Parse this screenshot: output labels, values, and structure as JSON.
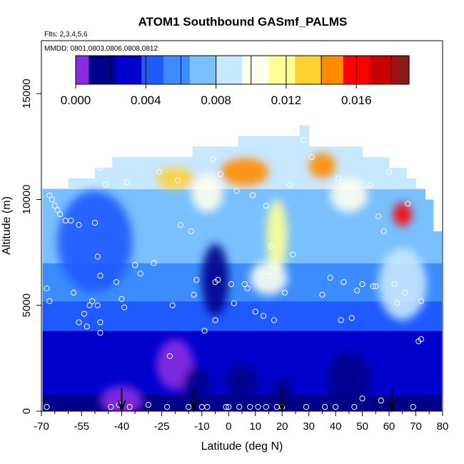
{
  "chart_data": {
    "type": "heatmap",
    "title": "ATOM1 Southbound GASmf_PALMS",
    "flights_note": "Flts: 2,3,4,5,6",
    "dates_note": "MMDD: 0801,0803,0806,0808,0812",
    "xlabel": "Latitude (deg N)",
    "ylabel": "Altitude (m)",
    "xlim": [
      -70,
      80
    ],
    "ylim": [
      0,
      17500
    ],
    "x_ticks": [
      -70,
      -55,
      -40,
      -25,
      -10,
      0,
      10,
      20,
      30,
      40,
      50,
      60,
      70,
      80
    ],
    "x_minor_ticks": [
      -65,
      -60,
      -50,
      -45,
      -35,
      -30,
      -20,
      -15,
      -5,
      5,
      15,
      25,
      35,
      45,
      55,
      65,
      75
    ],
    "y_ticks": [
      0,
      5000,
      10000,
      15000
    ],
    "colorbar": {
      "range": [
        0,
        0.019
      ],
      "tick_labels": [
        "0.000",
        "0.004",
        "0.008",
        "0.012",
        "0.016"
      ],
      "tick_values": [
        0,
        0.004,
        0.008,
        0.012,
        0.016
      ],
      "divider_values": [
        0.002,
        0.004,
        0.006,
        0.008,
        0.01,
        0.012,
        0.014,
        0.016,
        0.018
      ],
      "stops": [
        "#8a2be2",
        "#00008b",
        "#0000cd",
        "#1e5aff",
        "#3c8cff",
        "#78c0ff",
        "#c8e8ff",
        "#fffff0",
        "#ffff96",
        "#ffd232",
        "#ff8c00",
        "#ff0000",
        "#c80000",
        "#8b1a1a"
      ]
    },
    "columns": [
      {
        "lat": -68,
        "top": 10500
      },
      {
        "lat": -65,
        "top": 10500
      },
      {
        "lat": -62,
        "top": 10500
      },
      {
        "lat": -58,
        "top": 11000
      },
      {
        "lat": -55,
        "top": 11000
      },
      {
        "lat": -52,
        "top": 11000
      },
      {
        "lat": -48,
        "top": 11500
      },
      {
        "lat": -45,
        "top": 11500
      },
      {
        "lat": -42,
        "top": 12000
      },
      {
        "lat": -38,
        "top": 12000
      },
      {
        "lat": -35,
        "top": 12000
      },
      {
        "lat": -31,
        "top": 12000
      },
      {
        "lat": -28,
        "top": 12000
      },
      {
        "lat": -25,
        "top": 12000
      },
      {
        "lat": -21,
        "top": 12000
      },
      {
        "lat": -18,
        "top": 12000
      },
      {
        "lat": -15,
        "top": 12000
      },
      {
        "lat": -12,
        "top": 12500
      },
      {
        "lat": -8,
        "top": 12500
      },
      {
        "lat": -5,
        "top": 12500
      },
      {
        "lat": -2,
        "top": 12500
      },
      {
        "lat": 2,
        "top": 12500
      },
      {
        "lat": 5,
        "top": 13000
      },
      {
        "lat": 8,
        "top": 13000
      },
      {
        "lat": 12,
        "top": 13000
      },
      {
        "lat": 15,
        "top": 13000
      },
      {
        "lat": 18,
        "top": 13000
      },
      {
        "lat": 22,
        "top": 13000
      },
      {
        "lat": 25,
        "top": 13000
      },
      {
        "lat": 28,
        "top": 13500
      },
      {
        "lat": 32,
        "top": 12500
      },
      {
        "lat": 35,
        "top": 12500
      },
      {
        "lat": 38,
        "top": 12500
      },
      {
        "lat": 42,
        "top": 12500
      },
      {
        "lat": 45,
        "top": 12500
      },
      {
        "lat": 48,
        "top": 12500
      },
      {
        "lat": 52,
        "top": 12000
      },
      {
        "lat": 55,
        "top": 12000
      },
      {
        "lat": 58,
        "top": 12000
      },
      {
        "lat": 62,
        "top": 11500
      },
      {
        "lat": 65,
        "top": 11500
      },
      {
        "lat": 68,
        "top": 11000
      },
      {
        "lat": 72,
        "top": 10500
      },
      {
        "lat": 75,
        "top": 10000
      },
      {
        "lat": 78,
        "top": 8500
      }
    ],
    "features": [
      {
        "lat": -40,
        "alt": 500,
        "rx": 8,
        "ry": 700,
        "value": 0.0005
      },
      {
        "lat": -20,
        "alt": 2200,
        "rx": 7,
        "ry": 1200,
        "value": 0.0003
      },
      {
        "lat": -12,
        "alt": 1200,
        "rx": 5,
        "ry": 900,
        "value": 0.001
      },
      {
        "lat": 5,
        "alt": 1300,
        "rx": 6,
        "ry": 900,
        "value": 0.001
      },
      {
        "lat": 20,
        "alt": 900,
        "rx": 4,
        "ry": 700,
        "value": 0.0015
      },
      {
        "lat": 45,
        "alt": 1500,
        "rx": 8,
        "ry": 1300,
        "value": 0.001
      },
      {
        "lat": -5,
        "alt": 6200,
        "rx": 5,
        "ry": 1700,
        "value": 0.001
      },
      {
        "lat": -50,
        "alt": 8000,
        "rx": 14,
        "ry": 2400,
        "value": 0.0048
      },
      {
        "lat": -20,
        "alt": 11000,
        "rx": 7,
        "ry": 500,
        "value": 0.013
      },
      {
        "lat": 6,
        "alt": 11300,
        "rx": 9,
        "ry": 650,
        "value": 0.014
      },
      {
        "lat": 18,
        "alt": 8300,
        "rx": 4,
        "ry": 1700,
        "value": 0.012
      },
      {
        "lat": 35,
        "alt": 11600,
        "rx": 5,
        "ry": 600,
        "value": 0.015
      },
      {
        "lat": 65,
        "alt": 9300,
        "rx": 3.5,
        "ry": 550,
        "value": 0.016
      },
      {
        "lat": 15,
        "alt": 6300,
        "rx": 7,
        "ry": 800,
        "value": 0.01
      },
      {
        "lat": 65,
        "alt": 6000,
        "rx": 9,
        "ry": 1700,
        "value": 0.0085
      },
      {
        "lat": -8,
        "alt": 10300,
        "rx": 6,
        "ry": 900,
        "value": 0.0095
      },
      {
        "lat": 45,
        "alt": 10200,
        "rx": 7,
        "ry": 800,
        "value": 0.0095
      }
    ],
    "sample_points": [
      [
        -68,
        200
      ],
      [
        -68,
        5800
      ],
      [
        -67,
        5200
      ],
      [
        -67,
        10200
      ],
      [
        -66,
        10000
      ],
      [
        -65,
        9700
      ],
      [
        -64,
        9500
      ],
      [
        -63,
        9300
      ],
      [
        -61,
        9000
      ],
      [
        -59,
        9000
      ],
      [
        -58,
        5600
      ],
      [
        -56,
        4200
      ],
      [
        -56,
        8800
      ],
      [
        -54,
        4600
      ],
      [
        -53,
        4000
      ],
      [
        -52,
        5000
      ],
      [
        -51,
        5200
      ],
      [
        -50,
        8900
      ],
      [
        -49,
        5000
      ],
      [
        -49,
        7300
      ],
      [
        -48,
        4200
      ],
      [
        -48,
        6400
      ],
      [
        -48,
        3700
      ],
      [
        -48,
        11500
      ],
      [
        -46,
        10700
      ],
      [
        -44,
        200
      ],
      [
        -42,
        6100
      ],
      [
        -41,
        300
      ],
      [
        -40,
        5300
      ],
      [
        -39,
        4900
      ],
      [
        -38,
        10800
      ],
      [
        -37,
        200
      ],
      [
        -35,
        6900
      ],
      [
        -33,
        6500
      ],
      [
        -30,
        300
      ],
      [
        -28,
        7000
      ],
      [
        -26,
        11300
      ],
      [
        -23,
        200
      ],
      [
        -22,
        2600
      ],
      [
        -21,
        5000
      ],
      [
        -19,
        10900
      ],
      [
        -18,
        8800
      ],
      [
        -15,
        200
      ],
      [
        -14,
        8500
      ],
      [
        -13,
        5500
      ],
      [
        -12,
        6200
      ],
      [
        -10,
        200
      ],
      [
        -9,
        3800
      ],
      [
        -8,
        200
      ],
      [
        -6,
        11900
      ],
      [
        -5,
        4300
      ],
      [
        -5,
        6100
      ],
      [
        -4,
        6200
      ],
      [
        -3,
        11200
      ],
      [
        -1,
        200
      ],
      [
        0,
        200
      ],
      [
        1,
        6000
      ],
      [
        2,
        5100
      ],
      [
        3,
        10400
      ],
      [
        4,
        200
      ],
      [
        6,
        6000
      ],
      [
        7,
        5800
      ],
      [
        8,
        200
      ],
      [
        9,
        10200
      ],
      [
        10,
        4700
      ],
      [
        11,
        200
      ],
      [
        13,
        4500
      ],
      [
        14,
        200
      ],
      [
        14,
        9700
      ],
      [
        15,
        6400
      ],
      [
        16,
        7800
      ],
      [
        17,
        4300
      ],
      [
        18,
        200
      ],
      [
        20,
        200
      ],
      [
        21,
        5600
      ],
      [
        23,
        10700
      ],
      [
        24,
        7400
      ],
      [
        28,
        12800
      ],
      [
        29,
        200
      ],
      [
        31,
        12000
      ],
      [
        35,
        5500
      ],
      [
        36,
        200
      ],
      [
        38,
        6300
      ],
      [
        40,
        200
      ],
      [
        41,
        11000
      ],
      [
        42,
        4300
      ],
      [
        43,
        6100
      ],
      [
        46,
        4400
      ],
      [
        47,
        200
      ],
      [
        48,
        5700
      ],
      [
        50,
        6000
      ],
      [
        50,
        600
      ],
      [
        53,
        10700
      ],
      [
        54,
        5900
      ],
      [
        55,
        5900
      ],
      [
        56,
        9200
      ],
      [
        57,
        500
      ],
      [
        58,
        8500
      ],
      [
        60,
        11300
      ],
      [
        62,
        6000
      ],
      [
        63,
        5100
      ],
      [
        66,
        5600
      ],
      [
        67,
        9800
      ],
      [
        69,
        200
      ],
      [
        71,
        3300
      ],
      [
        72,
        3400
      ],
      [
        72,
        5200
      ]
    ],
    "arrows": [
      {
        "lat": -40
      },
      {
        "lat": -13
      },
      {
        "lat": 20
      },
      {
        "lat": 61
      }
    ]
  }
}
